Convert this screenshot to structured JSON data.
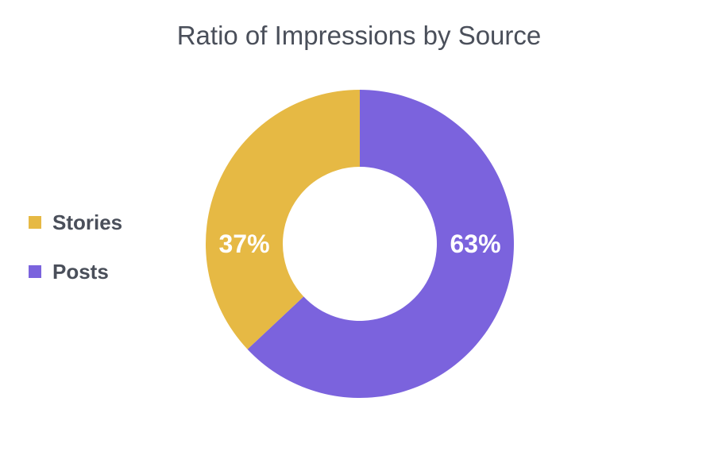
{
  "chart_data": {
    "type": "pie",
    "title": "Ratio of Impressions by Source",
    "donut": true,
    "legend_position": "left",
    "slices": [
      {
        "name": "Posts",
        "value": 63,
        "label": "63%",
        "color": "#7b63dd"
      },
      {
        "name": "Stories",
        "value": 37,
        "label": "37%",
        "color": "#e6b944"
      }
    ],
    "legend": [
      {
        "name": "Stories",
        "color": "#e6b944"
      },
      {
        "name": "Posts",
        "color": "#7b63dd"
      }
    ]
  }
}
